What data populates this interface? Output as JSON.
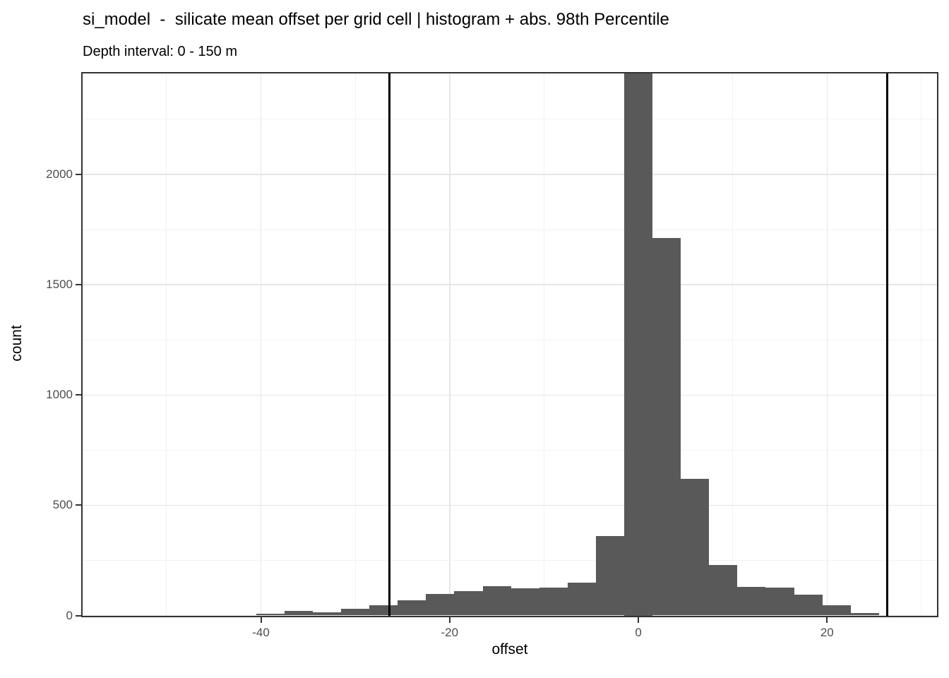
{
  "title": "si_model  -  silicate mean offset per grid cell | histogram + abs. 98th Percentile",
  "subtitle": "Depth interval: 0 - 150 m",
  "chart_data": {
    "type": "bar",
    "subtype": "histogram",
    "title": "si_model  -  silicate mean offset per grid cell | histogram + abs. 98th Percentile",
    "subtitle": "Depth interval: 0 - 150 m",
    "xlabel": "offset",
    "ylabel": "count",
    "xlim": [
      -58.9,
      31.65
    ],
    "ylim": [
      0,
      2458
    ],
    "x_major_ticks": [
      -40,
      -20,
      0,
      20
    ],
    "x_minor_gridlines": [
      -50,
      -30,
      -10,
      10,
      30
    ],
    "y_major_ticks": [
      0,
      500,
      1000,
      1500,
      2000
    ],
    "y_minor_gridlines": [
      250,
      750,
      1250,
      1750,
      2250
    ],
    "grid": "on",
    "binwidth": 3,
    "bins": {
      "centers": [
        -39,
        -36,
        -33,
        -30,
        -27,
        -24,
        -21,
        -18,
        -15,
        -12,
        -9,
        -6,
        -3,
        0,
        3,
        6,
        9,
        12,
        15,
        18,
        21,
        24
      ],
      "counts": [
        8,
        20,
        15,
        32,
        47,
        68,
        98,
        110,
        132,
        123,
        126,
        148,
        360,
        2600,
        1712,
        620,
        230,
        130,
        128,
        95,
        48,
        12
      ]
    },
    "peak_bin_center": 0,
    "peak_clipped_at_panel_top": true,
    "peak_visible_count_at_clip": 2458,
    "vlines": {
      "values": [
        -26.4,
        26.4
      ],
      "meaning": "abs. 98th Percentile",
      "color": "#000000"
    },
    "colors": {
      "bar_fill": "#595959",
      "grid_major": "#e6e6e6",
      "grid_minor": "#f2f2f2",
      "panel_border": "#333333",
      "tick_text": "#4d4d4d",
      "title_text": "#000000"
    }
  }
}
